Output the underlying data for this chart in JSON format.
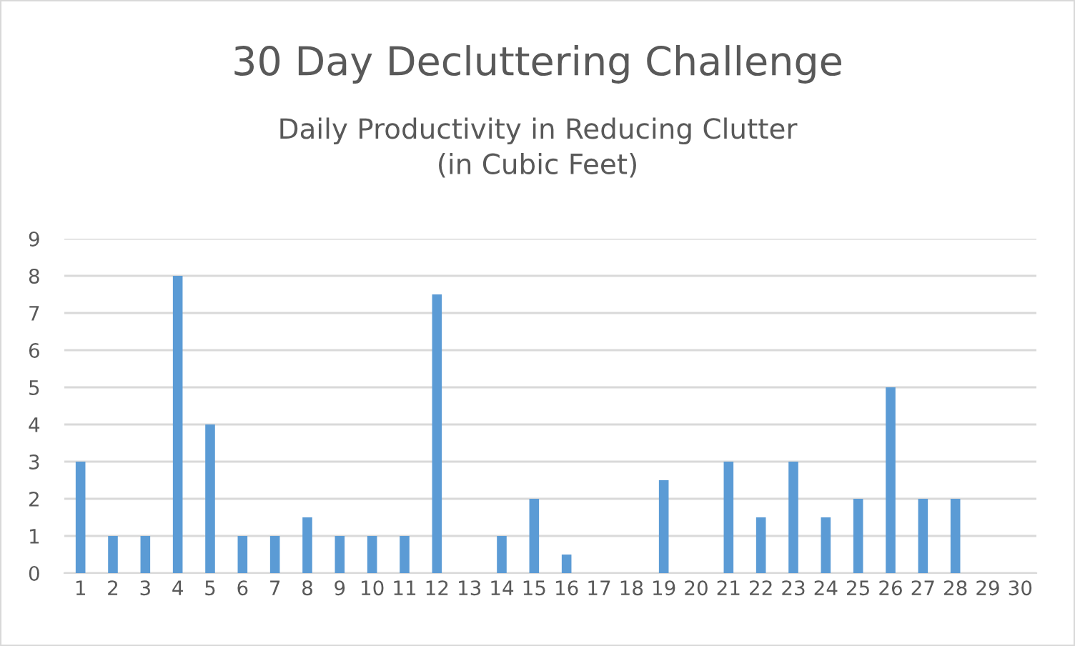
{
  "chart_data": {
    "type": "bar",
    "title": "30 Day Decluttering Challenge",
    "subtitle": "Daily Productivity in Reducing Clutter\n(in Cubic Feet)",
    "categories": [
      "1",
      "2",
      "3",
      "4",
      "5",
      "6",
      "7",
      "8",
      "9",
      "10",
      "11",
      "12",
      "13",
      "14",
      "15",
      "16",
      "17",
      "18",
      "19",
      "20",
      "21",
      "22",
      "23",
      "24",
      "25",
      "26",
      "27",
      "28",
      "29",
      "30"
    ],
    "values": [
      3,
      1,
      1,
      8,
      4,
      1,
      1,
      1.5,
      1,
      1,
      1,
      7.5,
      0,
      1,
      2,
      0.5,
      0,
      0,
      2.5,
      0,
      3,
      1.5,
      3,
      1.5,
      2,
      5,
      2,
      2,
      0,
      0
    ],
    "color": "#5b9bd5",
    "ylim": [
      0,
      9
    ],
    "yticks": [
      0,
      1,
      2,
      3,
      4,
      5,
      6,
      7,
      8,
      9
    ],
    "grid": "y"
  }
}
